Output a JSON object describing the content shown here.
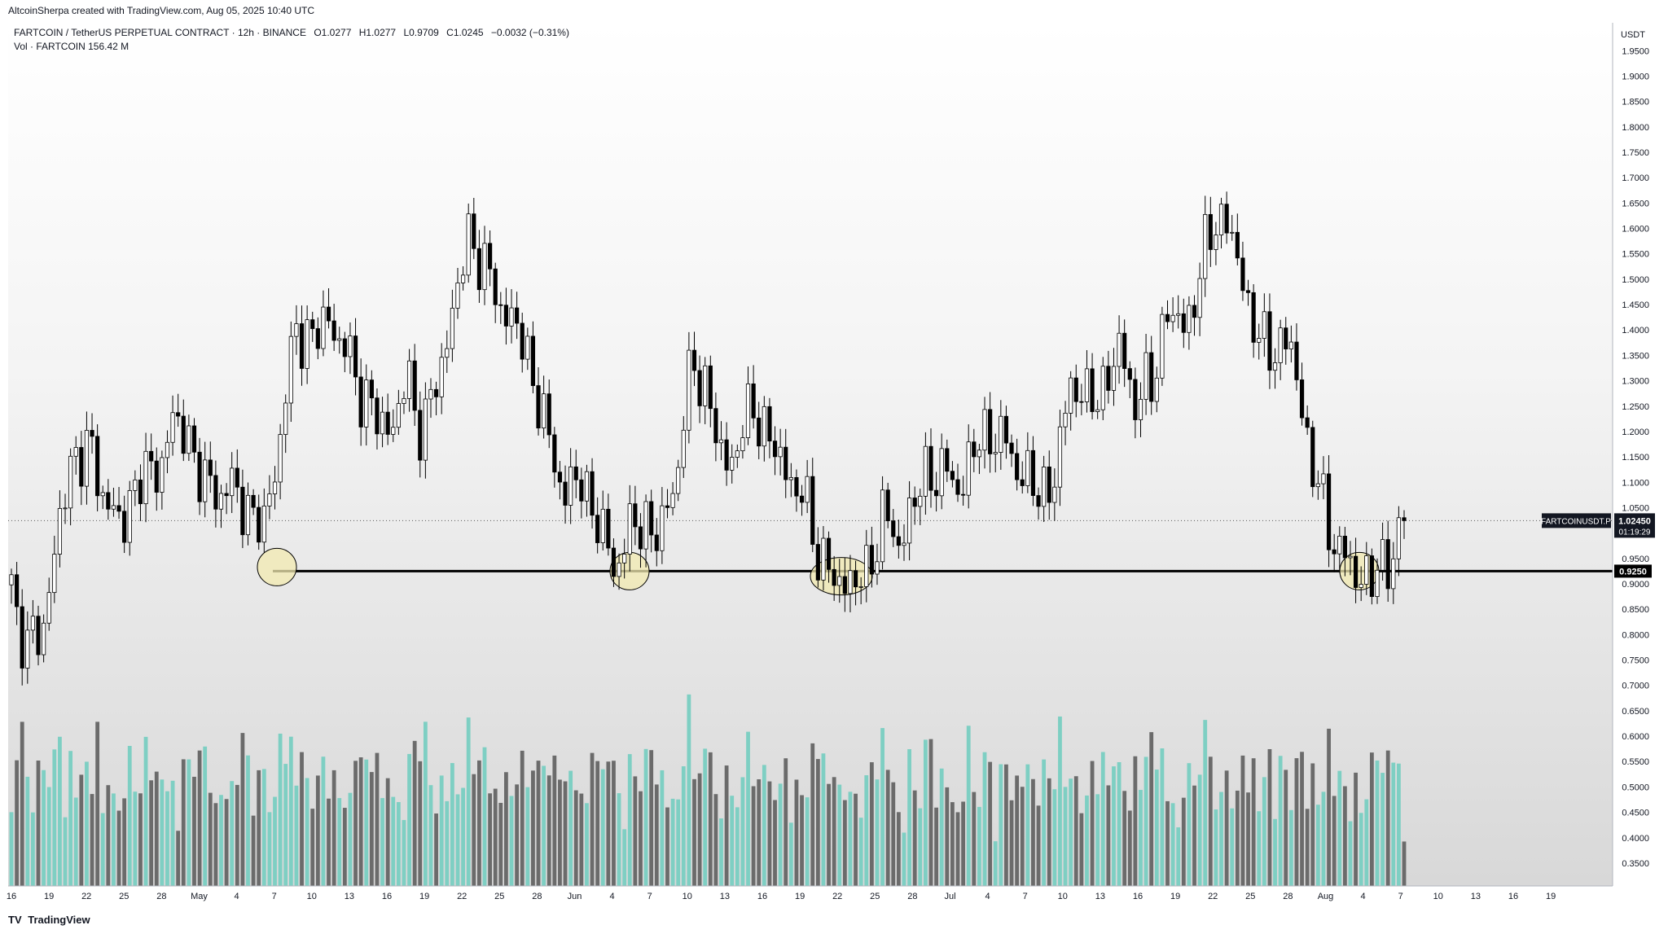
{
  "header": {
    "credit": "AltcoinSherpa created with TradingView.com, Aug 05, 2025 10:40 UTC"
  },
  "legend": {
    "symbol_line": "FARTCOIN / TetherUS PERPETUAL CONTRACT · 12h · BINANCE",
    "open": "O1.0277",
    "high": "H1.0277",
    "low": "L0.9709",
    "close": "C1.0245",
    "change": "−0.0032 (−0.31%)",
    "volume_line": "Vol · FARTCOIN  156.42 M"
  },
  "footer": {
    "logo": "TV",
    "brand": "TradingView"
  },
  "colors": {
    "bull": "#ffffff",
    "bear": "#000000",
    "vol_up": "#7ecfc3",
    "vol_down": "#6b6b6b",
    "circle": "#f2eab0"
  },
  "chart_data": {
    "type": "candlestick",
    "currency": "USDT",
    "y_ticks": [
      "0.3500",
      "0.4000",
      "0.4500",
      "0.5000",
      "0.5500",
      "0.6000",
      "0.6500",
      "0.7000",
      "0.7500",
      "0.8000",
      "0.8500",
      "0.9000",
      "0.9500",
      "1.0500",
      "1.1000",
      "1.1500",
      "1.2000",
      "1.2500",
      "1.3000",
      "1.3500",
      "1.4000",
      "1.4500",
      "1.5000",
      "1.5500",
      "1.6000",
      "1.6500",
      "1.7000",
      "1.7500",
      "1.8000",
      "1.8500",
      "1.9000",
      "1.9500"
    ],
    "ylim": [
      0.305,
      2.005
    ],
    "x_ticks": [
      "16",
      "19",
      "22",
      "25",
      "28",
      "May",
      "4",
      "7",
      "10",
      "13",
      "16",
      "19",
      "22",
      "25",
      "28",
      "Jun",
      "4",
      "7",
      "10",
      "13",
      "16",
      "19",
      "22",
      "25",
      "28",
      "Jul",
      "4",
      "7",
      "10",
      "13",
      "16",
      "19",
      "22",
      "25",
      "28",
      "Aug",
      "4",
      "7",
      "10",
      "13",
      "16",
      "19"
    ],
    "price_label": {
      "symbol": "FARTCOINUSDT.P",
      "price": "1.02450",
      "value": 1.0245,
      "countdown": "01:19:29"
    },
    "support_label": {
      "price": "0.9250",
      "value": 0.925
    },
    "support_circles": [
      {
        "date": "May 7",
        "price": 0.933
      },
      {
        "date": "Jun 4",
        "price": 0.925
      },
      {
        "date": "Jun 21",
        "price": 0.915
      },
      {
        "date": "Aug 2",
        "price": 0.925
      }
    ],
    "volume_scale_millions": [
      0,
      1600
    ],
    "price_path": [
      [
        0.92,
        0.86
      ],
      [
        0.8,
        0.74
      ],
      [
        0.78,
        0.85
      ],
      [
        0.95,
        1.08
      ],
      [
        1.19,
        1.14
      ],
      [
        1.11,
        1.2
      ],
      [
        1.08,
        1.05
      ],
      [
        0.99,
        1.02
      ],
      [
        1.07,
        1.17
      ],
      [
        1.11,
        1.1
      ],
      [
        1.16,
        1.25
      ],
      [
        1.24,
        1.18
      ],
      [
        1.11,
        1.09
      ],
      [
        1.1,
        1.07
      ],
      [
        1.04,
        1.13
      ],
      [
        1.09,
        1.0
      ],
      [
        0.99,
        1.03
      ],
      [
        1.1,
        1.3
      ],
      [
        1.37,
        1.44
      ],
      [
        1.34,
        1.42
      ],
      [
        1.39,
        1.46
      ],
      [
        1.38,
        1.35
      ],
      [
        1.28,
        1.3
      ],
      [
        1.26,
        1.19
      ],
      [
        1.24,
        1.17
      ],
      [
        1.29,
        1.31
      ],
      [
        1.21,
        1.19
      ],
      [
        1.27,
        1.35
      ],
      [
        1.4,
        1.51
      ],
      [
        1.62,
        1.57
      ],
      [
        1.53,
        1.49
      ],
      [
        1.42,
        1.47
      ],
      [
        1.42,
        1.38
      ],
      [
        1.33,
        1.28
      ],
      [
        1.21,
        1.13
      ],
      [
        1.06,
        1.1
      ],
      [
        1.15,
        1.06
      ],
      [
        1.08,
        0.98
      ],
      [
        0.95,
        0.91
      ],
      [
        1.02,
        0.98
      ],
      [
        1.0,
        1.05
      ],
      [
        1.01,
        0.97
      ],
      [
        1.06,
        1.18
      ],
      [
        1.28,
        1.39
      ],
      [
        1.34,
        1.22
      ],
      [
        1.15,
        1.09
      ],
      [
        1.22,
        1.16
      ],
      [
        1.2,
        1.3
      ],
      [
        1.22,
        1.13
      ],
      [
        1.15,
        1.09
      ],
      [
        1.1,
        1.04
      ],
      [
        0.98,
        0.95
      ],
      [
        0.92,
        0.88
      ],
      [
        0.93,
        0.89
      ],
      [
        0.85,
        0.96
      ],
      [
        1.05,
        1.03
      ],
      [
        0.98,
        0.97
      ],
      [
        1.03,
        1.09
      ],
      [
        1.14,
        1.11
      ],
      [
        1.16,
        1.07
      ],
      [
        1.04,
        1.14
      ],
      [
        1.15,
        1.21
      ],
      [
        1.21,
        1.19
      ],
      [
        1.16,
        1.17
      ],
      [
        1.15,
        1.07
      ],
      [
        1.05,
        1.1
      ],
      [
        1.06,
        1.17
      ],
      [
        1.28,
        1.35
      ],
      [
        1.28,
        1.22
      ],
      [
        1.25,
        1.33
      ],
      [
        1.35,
        1.37
      ],
      [
        1.31,
        1.22
      ],
      [
        1.25,
        1.32
      ],
      [
        1.4,
        1.48
      ],
      [
        1.41,
        1.39
      ],
      [
        1.45,
        1.53
      ],
      [
        1.59,
        1.67
      ],
      [
        1.62,
        1.57
      ],
      [
        1.51,
        1.43
      ],
      [
        1.35,
        1.37
      ],
      [
        1.39,
        1.36
      ],
      [
        1.4,
        1.31
      ],
      [
        1.19,
        1.12
      ],
      [
        1.06,
        1.02
      ],
      [
        0.98,
        0.93
      ],
      [
        0.95,
        0.89
      ],
      [
        0.9,
        0.92
      ],
      [
        0.92,
        0.97
      ],
      [
        1.03,
        1.0245
      ]
    ]
  }
}
